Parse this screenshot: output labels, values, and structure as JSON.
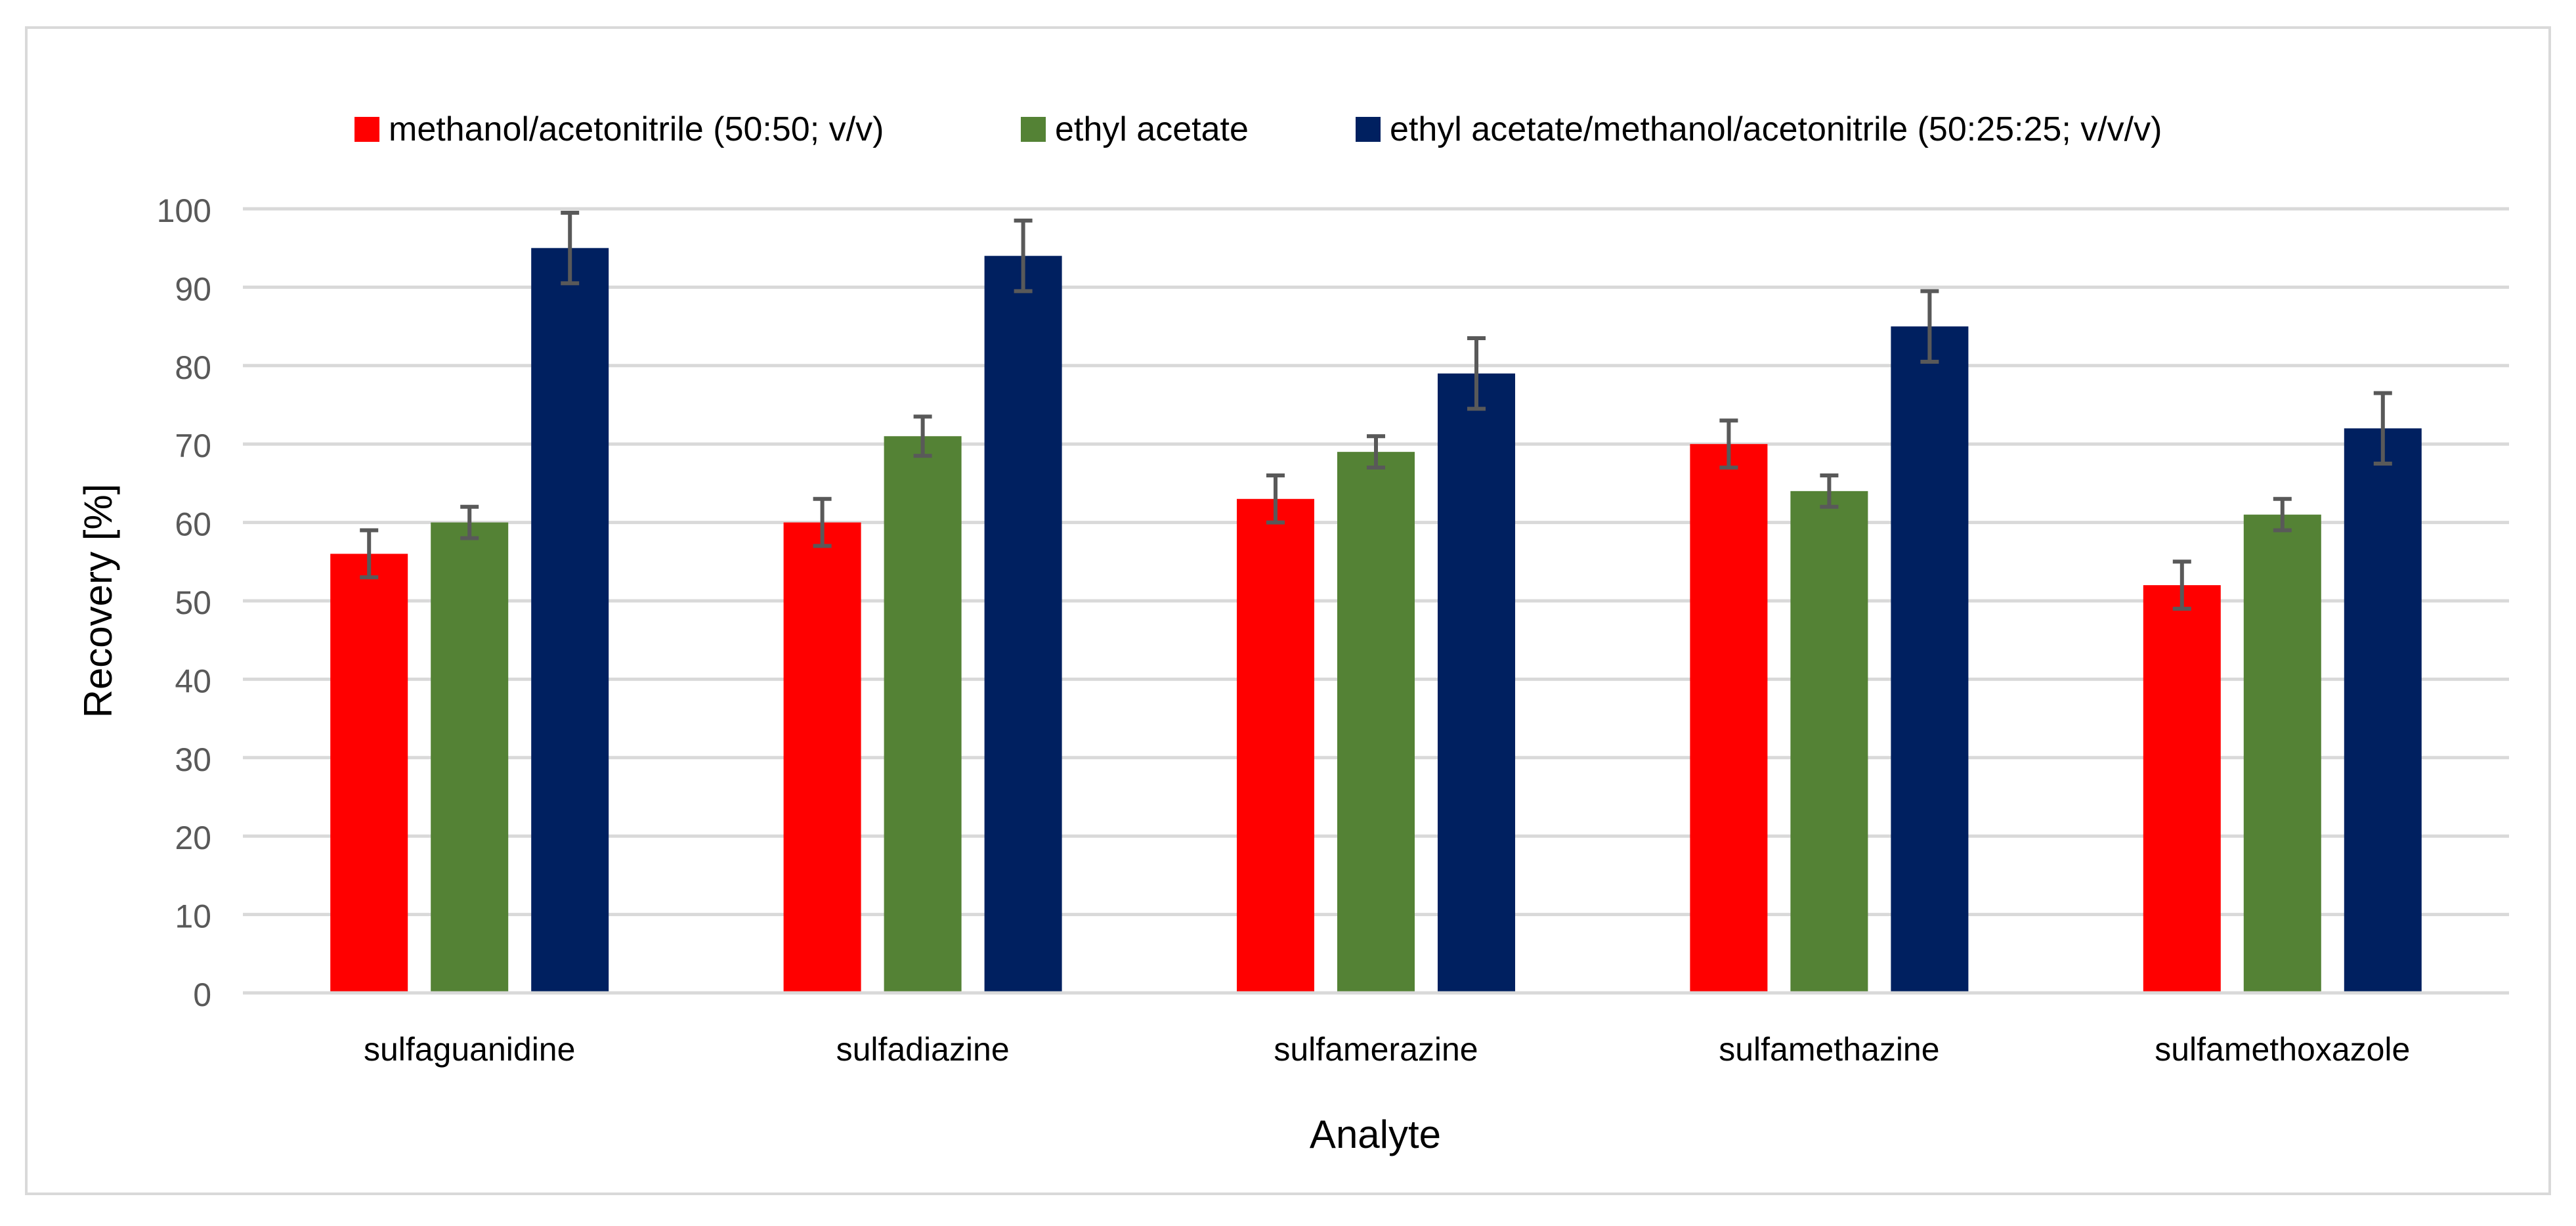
{
  "chart_data": {
    "type": "bar",
    "title": "",
    "xlabel": "Analyte",
    "ylabel": "Recovery  [%]",
    "ylim": [
      0,
      100
    ],
    "yticks": [
      0,
      10,
      20,
      30,
      40,
      50,
      60,
      70,
      80,
      90,
      100
    ],
    "grid": true,
    "legend_position": "top-center",
    "categories": [
      "sulfaguanidine",
      "sulfadiazine",
      "sulfamerazine",
      "sulfamethazine",
      "sulfamethoxazole"
    ],
    "series": [
      {
        "name": "methanol/acetonitrile (50:50; v/v)",
        "color": "#ff0000",
        "values": [
          56,
          60,
          63,
          70,
          52
        ],
        "errors": [
          3,
          3,
          3,
          3,
          3
        ]
      },
      {
        "name": "ethyl acetate",
        "color": "#548235",
        "values": [
          60,
          71,
          69,
          64,
          61
        ],
        "errors": [
          2,
          2.5,
          2,
          2,
          2
        ]
      },
      {
        "name": "ethyl acetate/methanol/acetonitrile (50:25:25; v/v/v)",
        "color": "#002060",
        "values": [
          95,
          94,
          79,
          85,
          72
        ],
        "errors": [
          4.5,
          4.5,
          4.5,
          4.5,
          4.5
        ]
      }
    ]
  }
}
